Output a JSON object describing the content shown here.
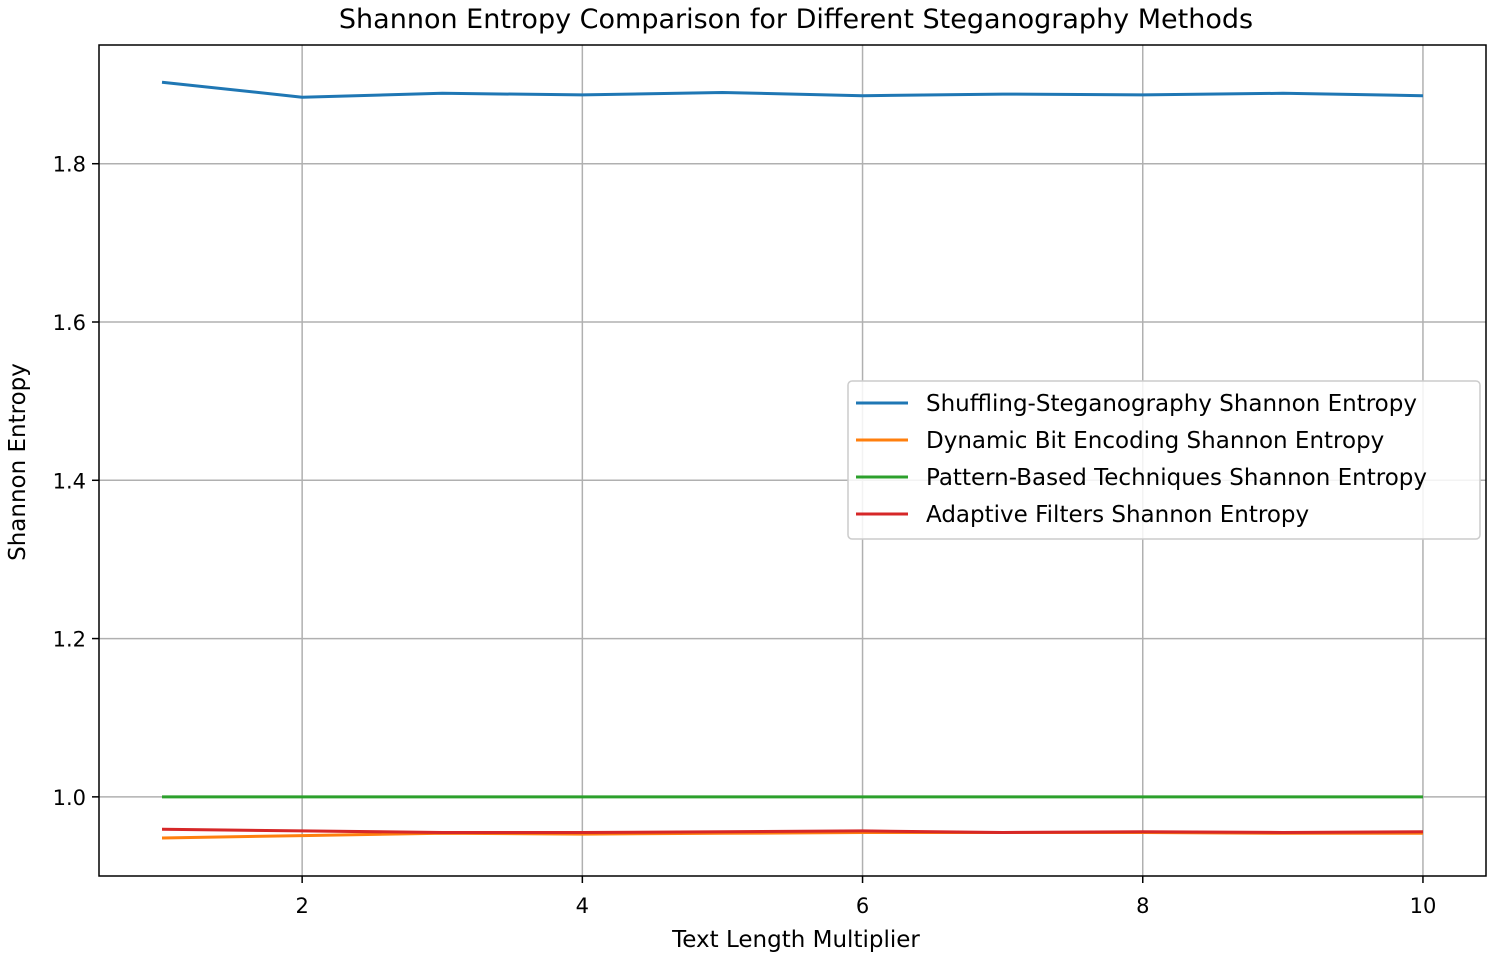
{
  "chart_data": {
    "type": "line",
    "title": "Shannon Entropy Comparison for Different Steganography Methods",
    "xlabel": "Text Length Multiplier",
    "ylabel": "Shannon Entropy",
    "xlim": [
      0.55,
      10.45
    ],
    "ylim": [
      0.9,
      1.95
    ],
    "xticks": [
      2,
      4,
      6,
      8,
      10
    ],
    "yticks": [
      1.0,
      1.2,
      1.4,
      1.6,
      1.8
    ],
    "ytick_labels": [
      "1.0",
      "1.2",
      "1.4",
      "1.6",
      "1.8"
    ],
    "grid": true,
    "legend_position": "center-right",
    "x": [
      1,
      2,
      3,
      4,
      5,
      6,
      7,
      8,
      9,
      10
    ],
    "series": [
      {
        "name": "Shuffling-Steganography Shannon Entropy",
        "color": "#1f77b4",
        "values": [
          1.903,
          1.884,
          1.889,
          1.887,
          1.89,
          1.886,
          1.888,
          1.887,
          1.889,
          1.886
        ]
      },
      {
        "name": "Dynamic Bit Encoding Shannon Entropy",
        "color": "#ff7f0e",
        "values": [
          0.948,
          0.951,
          0.954,
          0.953,
          0.954,
          0.955,
          0.955,
          0.955,
          0.954,
          0.954
        ]
      },
      {
        "name": "Pattern-Based Techniques Shannon Entropy",
        "color": "#2ca02c",
        "values": [
          1.0,
          1.0,
          1.0,
          1.0,
          1.0,
          1.0,
          1.0,
          1.0,
          1.0,
          1.0
        ]
      },
      {
        "name": "Adaptive Filters Shannon Entropy",
        "color": "#d62728",
        "values": [
          0.959,
          0.957,
          0.955,
          0.955,
          0.956,
          0.957,
          0.955,
          0.956,
          0.955,
          0.956
        ]
      }
    ]
  }
}
